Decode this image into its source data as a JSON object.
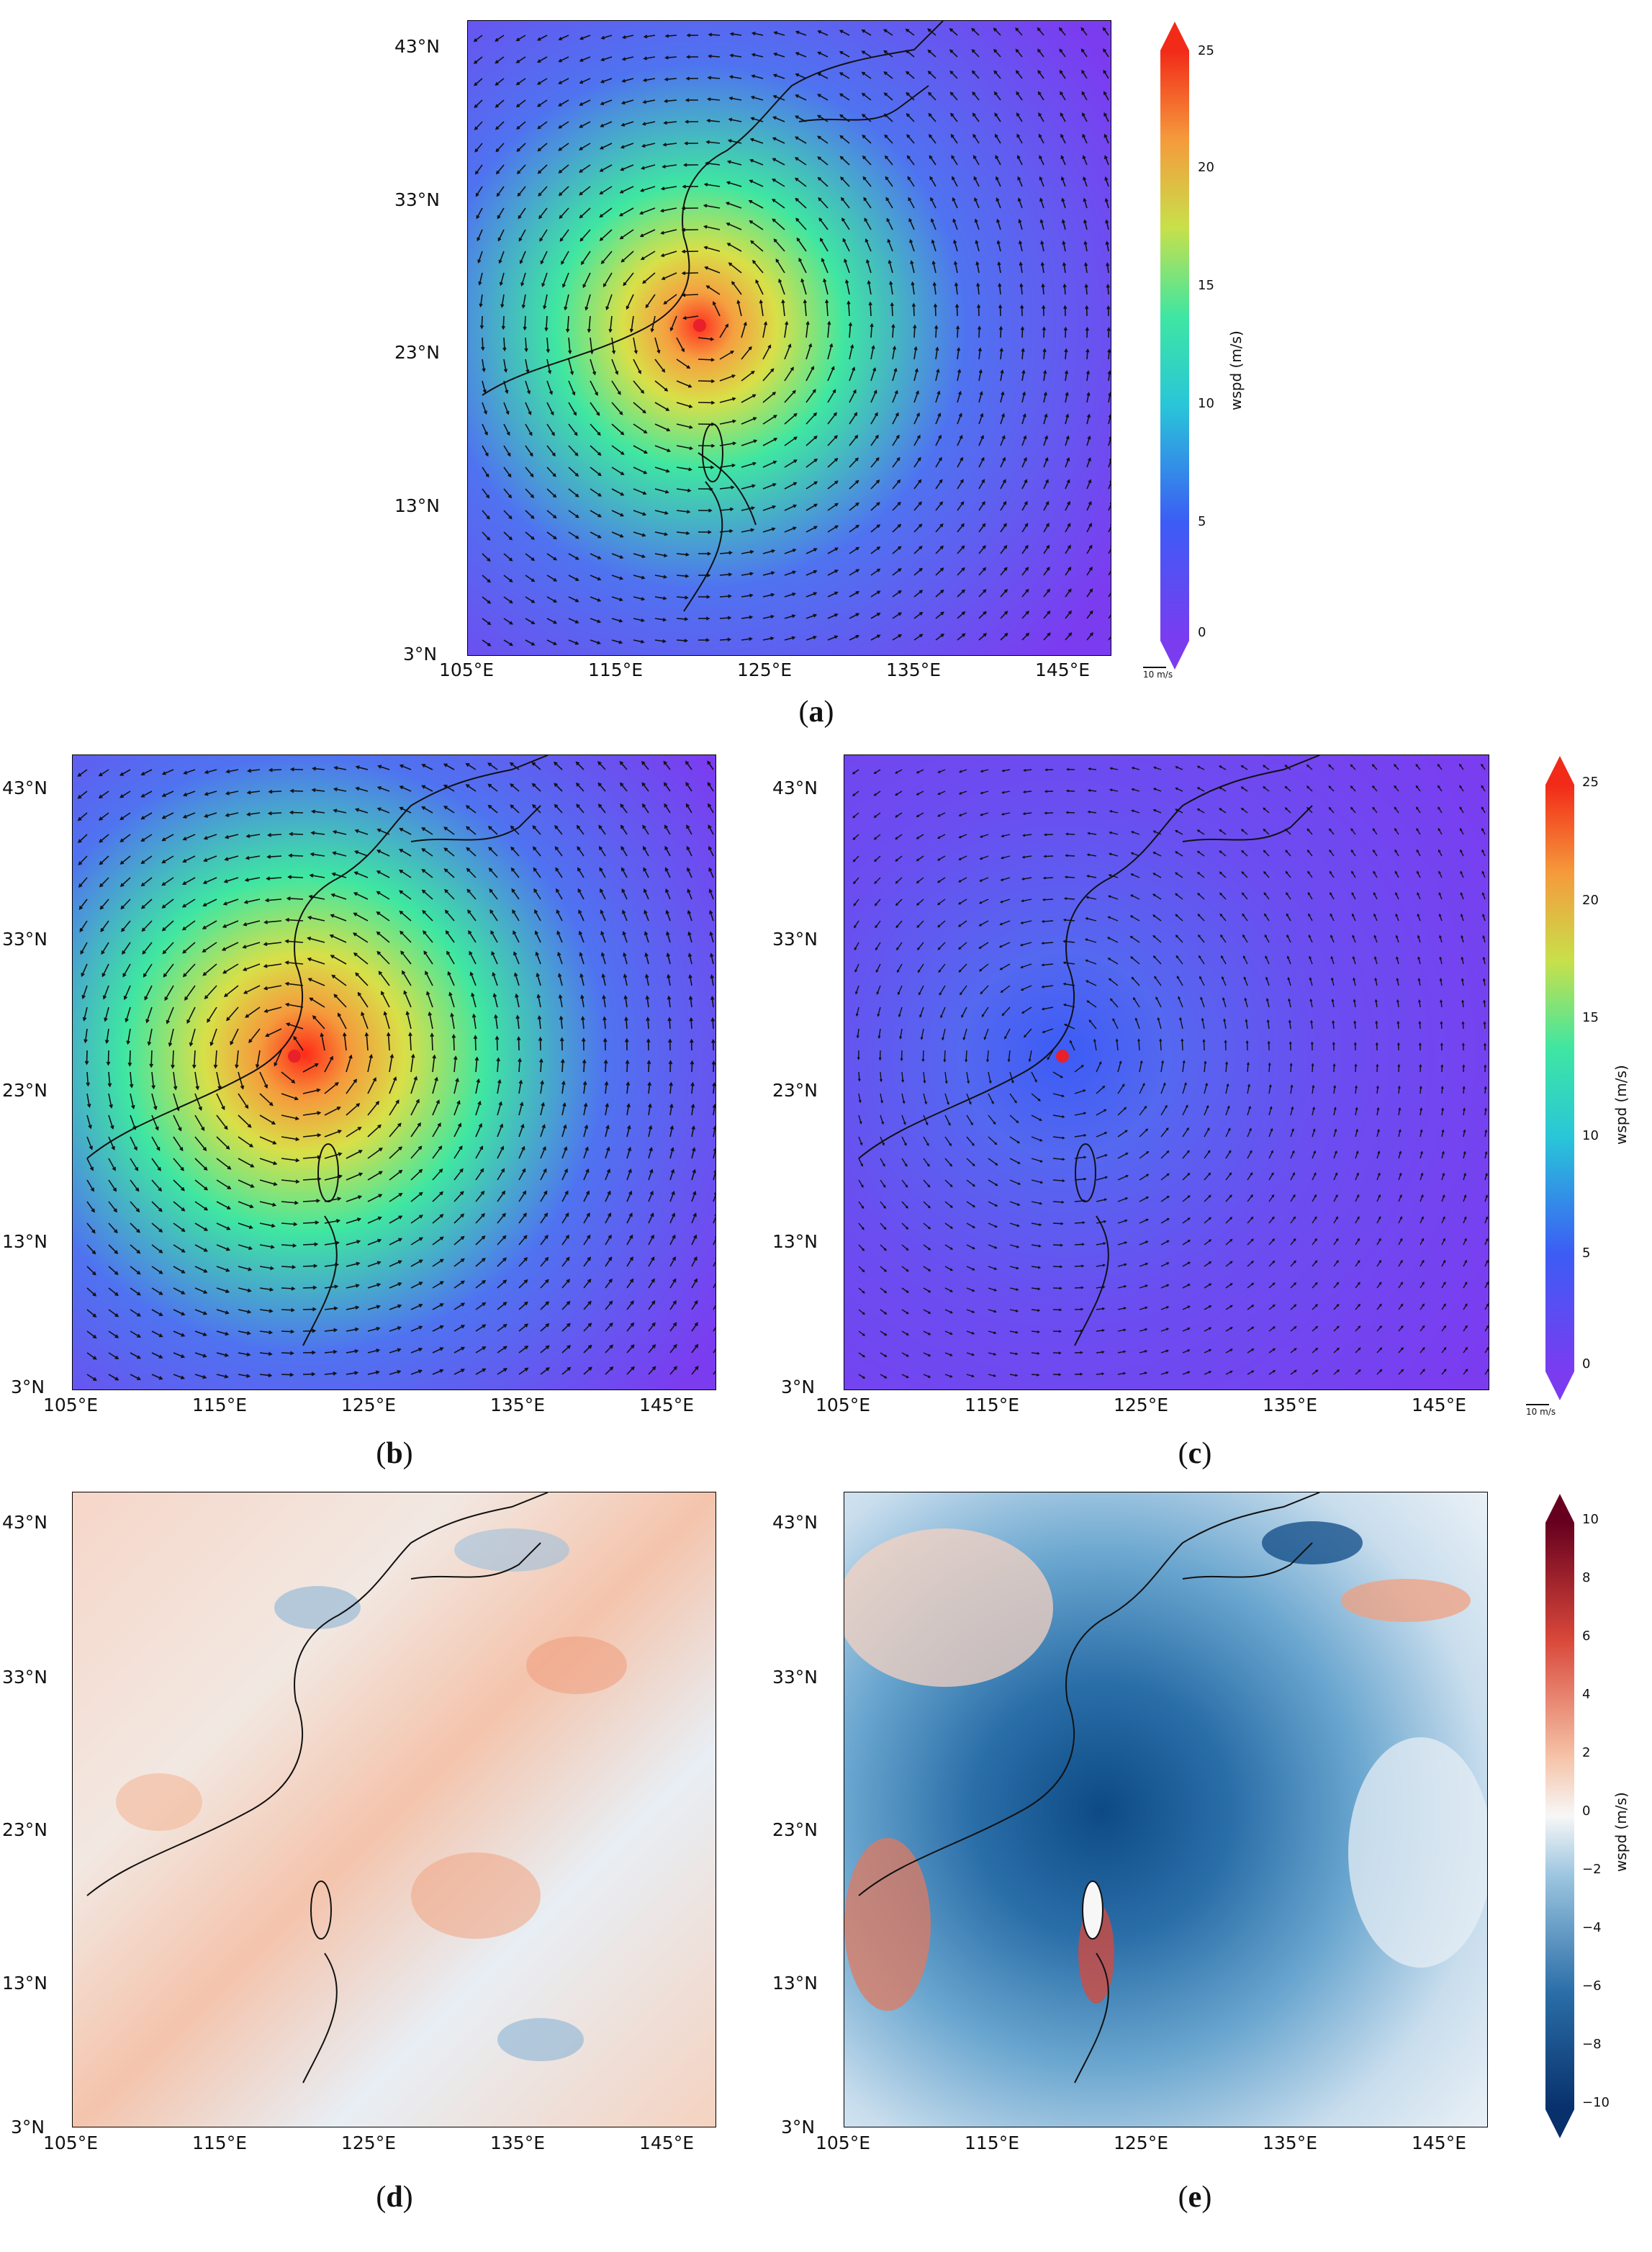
{
  "lat_labels": [
    "43°N",
    "33°N",
    "23°N",
    "13°N",
    "3°N"
  ],
  "lon_labels": [
    "105°E",
    "115°E",
    "125°E",
    "135°E",
    "145°E"
  ],
  "captions": {
    "a": "a",
    "b": "b",
    "c": "c",
    "d": "d",
    "e": "e"
  },
  "wind_colorbar": {
    "label": "wspd (m/s)",
    "ticks": [
      "25",
      "20",
      "15",
      "10",
      "5",
      "0"
    ],
    "min": 0,
    "max": 25,
    "colormap": "rainbow"
  },
  "diff_colorbar": {
    "label": "wspd (m/s)",
    "ticks": [
      "10",
      "8",
      "6",
      "4",
      "2",
      "0",
      "−2",
      "−4",
      "−6",
      "−8",
      "−10"
    ],
    "min": -10,
    "max": 10,
    "colormap": "RdBu_r"
  },
  "reference_arrow": {
    "label": "10 m/s"
  },
  "typhoon_center": {
    "lat": 25.5,
    "lon": 120.3,
    "marker_color": "#e8202a"
  },
  "colors": {
    "calm": "#7b3cf0",
    "low": "#4a6cf0",
    "mid": "#35e0a0",
    "high": "#f5c542",
    "peak": "#e8202a",
    "diff_pos": "#e07a5f",
    "diff_neg": "#2b6ea8",
    "diff_zero": "#f7f7f7"
  }
}
